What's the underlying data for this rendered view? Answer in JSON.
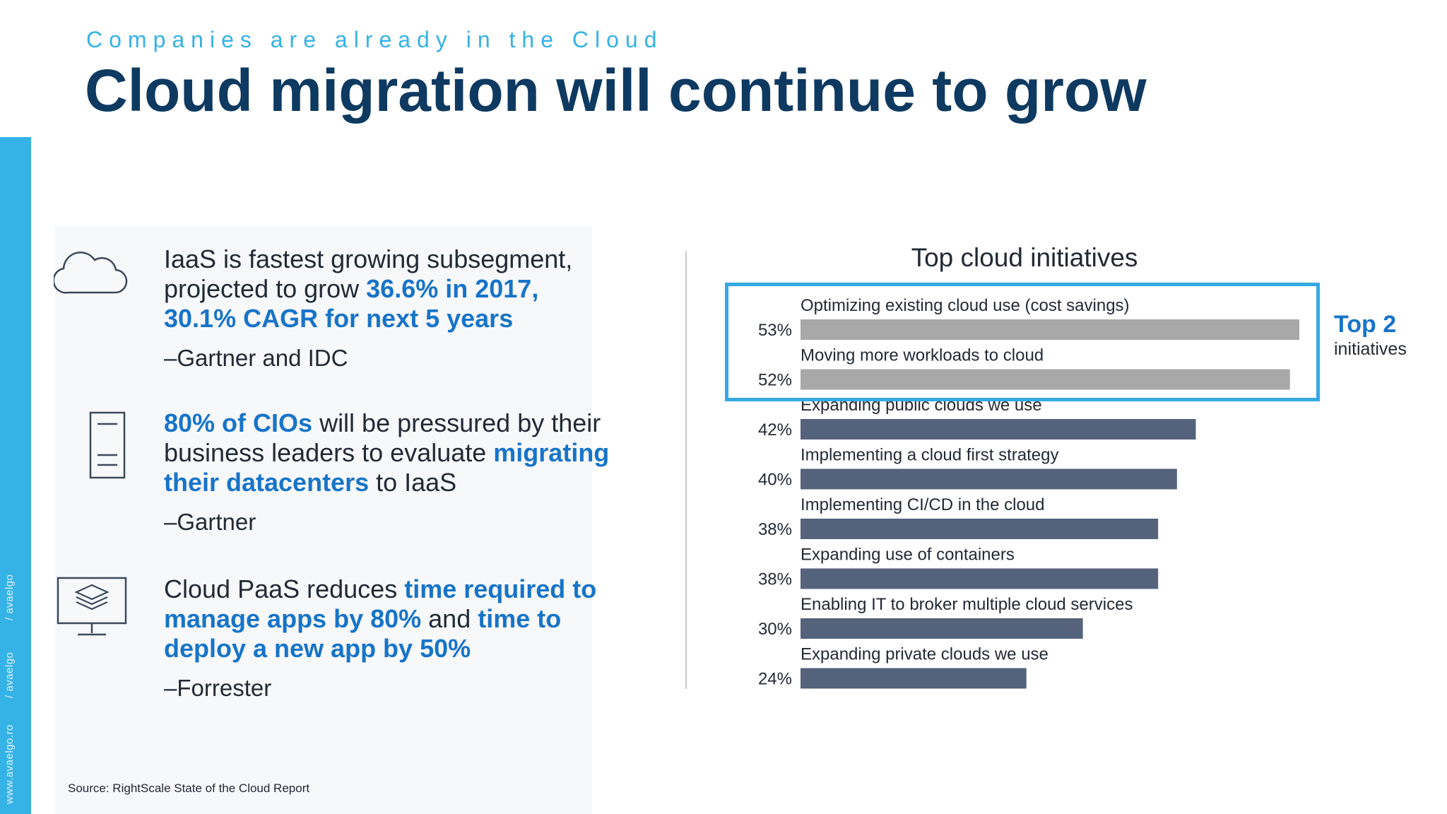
{
  "header": {
    "subtitle": "Companies are already in the Cloud",
    "title": "Cloud migration will continue to grow"
  },
  "sidebar": {
    "labels": [
      "www.avaelgo.ro",
      "/ avaelgo",
      "/ avaelgo"
    ]
  },
  "items": [
    {
      "icon": "cloud-icon",
      "parts": [
        {
          "text": "IaaS is fastest growing subsegment, projected to grow ",
          "hl": false
        },
        {
          "text": "36.6% in 2017, 30.1% CAGR for next 5 years",
          "hl": true
        }
      ],
      "source": "–Gartner and IDC"
    },
    {
      "icon": "server-icon",
      "parts": [
        {
          "text": "80% of CIOs",
          "hl": true
        },
        {
          "text": " will be pressured by their business leaders to evaluate ",
          "hl": false
        },
        {
          "text": "migrating their datacenters",
          "hl": true
        },
        {
          "text": " to IaaS",
          "hl": false
        }
      ],
      "source": "–Gartner"
    },
    {
      "icon": "monitor-layers-icon",
      "parts": [
        {
          "text": "Cloud PaaS reduces ",
          "hl": false
        },
        {
          "text": "time required to manage apps by 80%",
          "hl": true
        },
        {
          "text": " and ",
          "hl": false
        },
        {
          "text": "time to deploy a new app by 50%",
          "hl": true
        }
      ],
      "source": "–Forrester"
    }
  ],
  "callout": {
    "label": "Top 2",
    "sublabel": "initiatives"
  },
  "footer": {
    "source": "Source: RightScale State of the Cloud Report"
  },
  "colors": {
    "accent": "#35b2e6",
    "title": "#0e3a61",
    "highlight": "#1774c8",
    "bar_top": "#a8a8a8",
    "bar_other": "#54637b"
  },
  "chart_data": {
    "type": "bar",
    "orientation": "horizontal",
    "title": "Top cloud initiatives",
    "categories": [
      "Optimizing existing cloud use (cost savings)",
      "Moving more workloads to cloud",
      "Expanding public clouds we use",
      "Implementing a cloud first strategy",
      "Implementing CI/CD in the cloud",
      "Expanding use of containers",
      "Enabling IT to broker multiple cloud services",
      "Expanding private clouds we use"
    ],
    "values": [
      53,
      52,
      42,
      40,
      38,
      38,
      30,
      24
    ],
    "value_labels": [
      "53%",
      "52%",
      "42%",
      "40%",
      "38%",
      "38%",
      "30%",
      "24%"
    ],
    "highlighted": [
      0,
      1
    ],
    "xlim": [
      0,
      53
    ],
    "grid": false,
    "legend": "none"
  }
}
